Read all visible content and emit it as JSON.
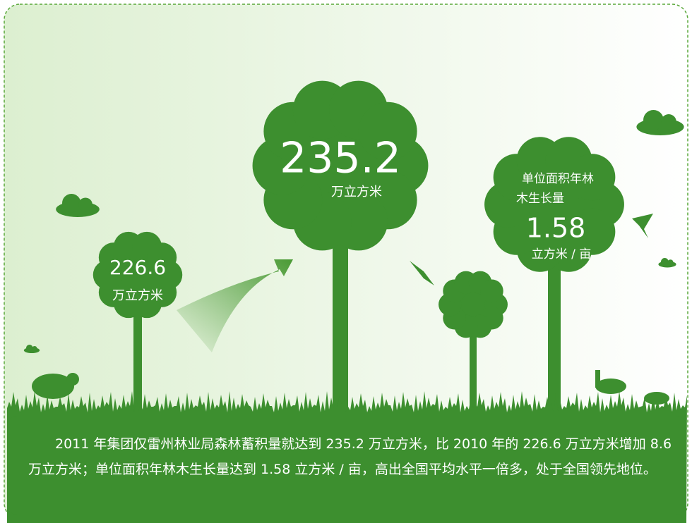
{
  "trees": [
    {
      "value": "226.6",
      "unit": "万立方米"
    },
    {
      "value": "235.2",
      "unit": "万立方米"
    },
    {
      "label_lines": [
        "单位面积年林",
        "木生长量"
      ],
      "value": "1.58",
      "unit": "立方米 / 亩"
    }
  ],
  "paragraph": "2011 年集团仅雷州林业局森林蓄积量就达到 235.2 万立方米，比 2010 年的 226.6 万立方米增加 8.6 万立方米；单位面积年林木生长量达到 1.58 立方米 / 亩，高出全国平均水平一倍多，处于全国领先地位。"
}
